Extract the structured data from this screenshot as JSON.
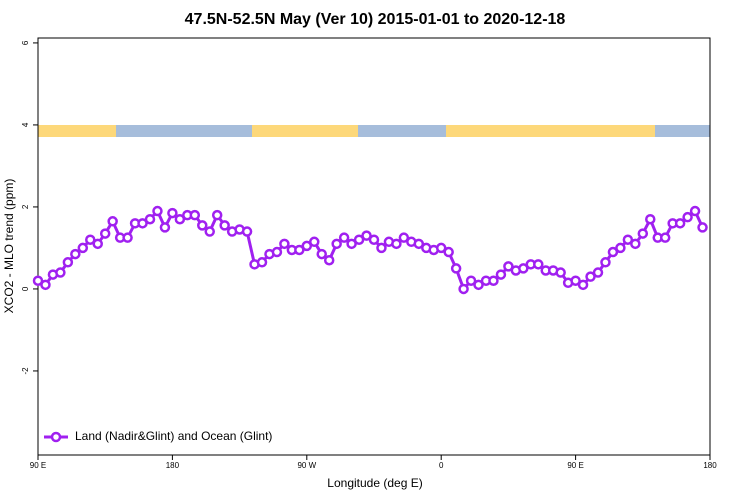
{
  "chart_data": {
    "type": "line",
    "title": "47.5N-52.5N May (Ver 10)   2015-01-01 to 2020-12-18",
    "x_label": "Longitude (deg E)",
    "y_label": "XCO2 - MLO trend (ppm)",
    "x": [
      90,
      95,
      100,
      105,
      110,
      115,
      120,
      125,
      130,
      135,
      140,
      145,
      150,
      155,
      160,
      165,
      170,
      175,
      180,
      185,
      190,
      195,
      200,
      205,
      210,
      215,
      220,
      225,
      230,
      235,
      240,
      245,
      250,
      255,
      260,
      265,
      270,
      275,
      280,
      285,
      290,
      295,
      300,
      305,
      310,
      315,
      320,
      325,
      330,
      335,
      340,
      345,
      350,
      355,
      360,
      365,
      370,
      375,
      380,
      385,
      390,
      395,
      400,
      405,
      410,
      415,
      420,
      425,
      430,
      435,
      440,
      445,
      450,
      455,
      460,
      465,
      470,
      475,
      480,
      485,
      490,
      495,
      500,
      505,
      510,
      515,
      520,
      525,
      530,
      535
    ],
    "series": [
      {
        "name": "Land (Nadir&Glint) and Ocean (Glint)",
        "color": "#a020f0",
        "values": [
          0.2,
          0.1,
          0.35,
          0.4,
          0.65,
          0.85,
          1.0,
          1.2,
          1.1,
          1.35,
          1.65,
          1.25,
          1.25,
          1.6,
          1.6,
          1.7,
          1.9,
          1.5,
          1.85,
          1.7,
          1.8,
          1.8,
          1.55,
          1.4,
          1.8,
          1.55,
          1.4,
          1.45,
          1.4,
          0.6,
          0.65,
          0.85,
          0.9,
          1.1,
          0.95,
          0.95,
          1.05,
          1.15,
          0.85,
          0.7,
          1.1,
          1.25,
          1.1,
          1.2,
          1.3,
          1.2,
          1.0,
          1.15,
          1.1,
          1.25,
          1.15,
          1.1,
          1.0,
          0.95,
          1.0,
          0.9,
          0.5,
          0.0,
          0.2,
          0.1,
          0.2,
          0.2,
          0.35,
          0.55,
          0.45,
          0.5,
          0.6,
          0.6,
          0.45,
          0.45,
          0.4,
          0.15,
          0.2,
          0.1,
          0.3,
          0.4,
          0.65,
          0.9,
          1.0,
          1.2,
          1.1,
          1.35,
          1.7,
          1.25,
          1.25,
          1.6,
          1.6,
          1.75,
          1.9,
          1.5
        ]
      }
    ],
    "xlim": [
      90,
      540
    ],
    "xticks": [
      {
        "value": 90,
        "label": "90 E"
      },
      180,
      {
        "value": 270,
        "label": "90 W"
      },
      {
        "value": 360,
        "label": "0"
      },
      {
        "value": 450,
        "label": "90 E"
      },
      {
        "value": 540,
        "label": "180"
      }
    ],
    "ylim": [
      -4.05,
      6.12
    ],
    "yticks": [
      -2,
      0,
      2,
      4,
      6
    ],
    "grid": false,
    "legend": "bottom-left"
  }
}
